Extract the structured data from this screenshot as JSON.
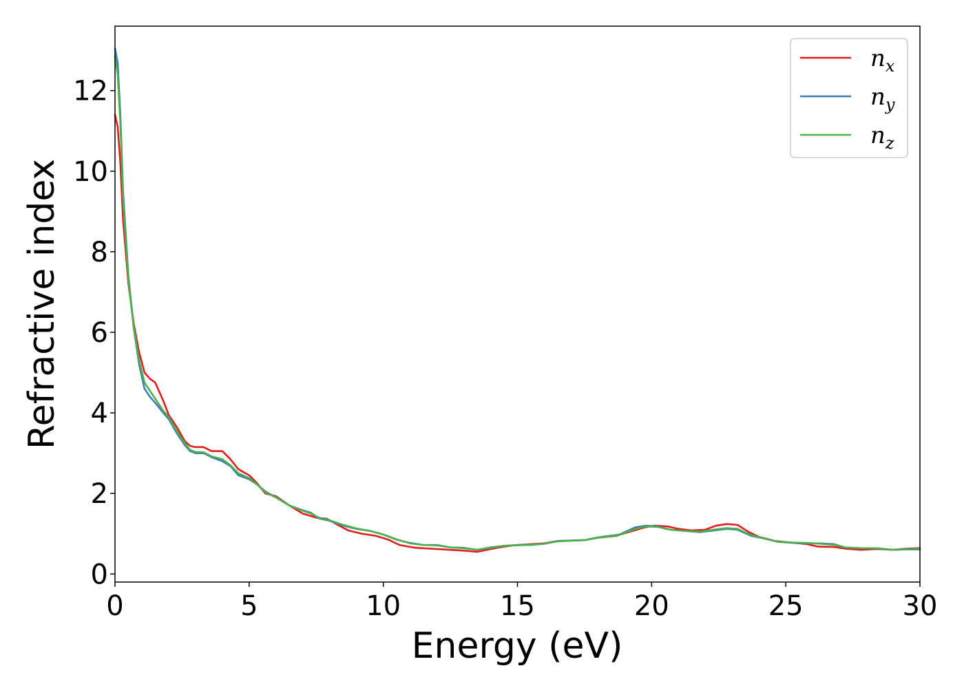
{
  "chart_data": {
    "type": "line",
    "title": "",
    "xlabel": "Energy (eV)",
    "ylabel": "Refractive index",
    "xlim": [
      0,
      30
    ],
    "ylim": [
      -0.2,
      13.6
    ],
    "xticks": [
      0,
      5,
      10,
      15,
      20,
      25,
      30
    ],
    "yticks": [
      0,
      2,
      4,
      6,
      8,
      10,
      12
    ],
    "grid": false,
    "legend": "top-right",
    "series": [
      {
        "name": "n",
        "sub": "x",
        "color": "#e41a1c",
        "points": [
          [
            0,
            11.4
          ],
          [
            0.1,
            11.1
          ],
          [
            0.2,
            10.2
          ],
          [
            0.3,
            8.8
          ],
          [
            0.5,
            7.2
          ],
          [
            0.7,
            6.2
          ],
          [
            0.9,
            5.5
          ],
          [
            1.1,
            5.0
          ],
          [
            1.3,
            4.85
          ],
          [
            1.5,
            4.75
          ],
          [
            1.8,
            4.3
          ],
          [
            2.0,
            3.95
          ],
          [
            2.3,
            3.65
          ],
          [
            2.6,
            3.3
          ],
          [
            2.8,
            3.18
          ],
          [
            3.0,
            3.15
          ],
          [
            3.3,
            3.15
          ],
          [
            3.6,
            3.05
          ],
          [
            4.0,
            3.05
          ],
          [
            4.3,
            2.85
          ],
          [
            4.6,
            2.6
          ],
          [
            5.0,
            2.45
          ],
          [
            5.3,
            2.25
          ],
          [
            5.6,
            2.0
          ],
          [
            6.0,
            1.93
          ],
          [
            6.5,
            1.7
          ],
          [
            7.0,
            1.5
          ],
          [
            7.5,
            1.4
          ],
          [
            7.9,
            1.37
          ],
          [
            8.3,
            1.22
          ],
          [
            8.7,
            1.08
          ],
          [
            9.2,
            1.0
          ],
          [
            9.7,
            0.95
          ],
          [
            10.2,
            0.85
          ],
          [
            10.6,
            0.72
          ],
          [
            11.2,
            0.65
          ],
          [
            12.0,
            0.62
          ],
          [
            13.0,
            0.58
          ],
          [
            13.5,
            0.55
          ],
          [
            14.0,
            0.62
          ],
          [
            14.5,
            0.68
          ],
          [
            15.0,
            0.72
          ],
          [
            15.5,
            0.74
          ],
          [
            16.0,
            0.76
          ],
          [
            16.5,
            0.82
          ],
          [
            17.5,
            0.84
          ],
          [
            18.0,
            0.9
          ],
          [
            18.7,
            0.95
          ],
          [
            19.2,
            1.05
          ],
          [
            19.7,
            1.15
          ],
          [
            20.1,
            1.2
          ],
          [
            20.6,
            1.18
          ],
          [
            21.0,
            1.12
          ],
          [
            21.5,
            1.08
          ],
          [
            22.0,
            1.1
          ],
          [
            22.4,
            1.2
          ],
          [
            22.8,
            1.24
          ],
          [
            23.2,
            1.22
          ],
          [
            23.6,
            1.05
          ],
          [
            24.0,
            0.92
          ],
          [
            24.6,
            0.82
          ],
          [
            25.2,
            0.78
          ],
          [
            25.8,
            0.74
          ],
          [
            26.2,
            0.68
          ],
          [
            26.8,
            0.67
          ],
          [
            27.2,
            0.63
          ],
          [
            27.8,
            0.6
          ],
          [
            28.4,
            0.62
          ],
          [
            29.0,
            0.6
          ],
          [
            29.5,
            0.63
          ],
          [
            30.0,
            0.64
          ]
        ]
      },
      {
        "name": "n",
        "sub": "y",
        "color": "#377eb8",
        "points": [
          [
            0,
            13.05
          ],
          [
            0.1,
            12.7
          ],
          [
            0.2,
            11.4
          ],
          [
            0.3,
            9.5
          ],
          [
            0.5,
            7.4
          ],
          [
            0.7,
            6.1
          ],
          [
            0.9,
            5.2
          ],
          [
            1.1,
            4.6
          ],
          [
            1.3,
            4.4
          ],
          [
            1.5,
            4.25
          ],
          [
            1.8,
            4.0
          ],
          [
            2.0,
            3.85
          ],
          [
            2.3,
            3.5
          ],
          [
            2.6,
            3.2
          ],
          [
            2.8,
            3.05
          ],
          [
            3.0,
            3.0
          ],
          [
            3.3,
            3.0
          ],
          [
            3.6,
            2.9
          ],
          [
            4.0,
            2.8
          ],
          [
            4.3,
            2.68
          ],
          [
            4.6,
            2.45
          ],
          [
            5.0,
            2.35
          ],
          [
            5.3,
            2.22
          ],
          [
            5.6,
            2.05
          ],
          [
            6.0,
            1.9
          ],
          [
            6.5,
            1.7
          ],
          [
            7.0,
            1.58
          ],
          [
            7.3,
            1.52
          ],
          [
            7.6,
            1.38
          ],
          [
            8.0,
            1.32
          ],
          [
            8.5,
            1.2
          ],
          [
            9.0,
            1.12
          ],
          [
            9.5,
            1.07
          ],
          [
            10.0,
            0.98
          ],
          [
            10.5,
            0.85
          ],
          [
            11.0,
            0.77
          ],
          [
            11.5,
            0.72
          ],
          [
            12.0,
            0.72
          ],
          [
            12.5,
            0.66
          ],
          [
            13.0,
            0.65
          ],
          [
            13.5,
            0.6
          ],
          [
            14.0,
            0.66
          ],
          [
            14.5,
            0.7
          ],
          [
            15.0,
            0.72
          ],
          [
            15.5,
            0.72
          ],
          [
            16.0,
            0.75
          ],
          [
            16.5,
            0.82
          ],
          [
            17.5,
            0.84
          ],
          [
            18.0,
            0.91
          ],
          [
            18.8,
            0.98
          ],
          [
            19.4,
            1.16
          ],
          [
            19.8,
            1.2
          ],
          [
            20.2,
            1.18
          ],
          [
            20.7,
            1.1
          ],
          [
            21.2,
            1.07
          ],
          [
            21.8,
            1.04
          ],
          [
            22.3,
            1.08
          ],
          [
            22.8,
            1.12
          ],
          [
            23.2,
            1.1
          ],
          [
            23.7,
            0.95
          ],
          [
            24.2,
            0.88
          ],
          [
            24.7,
            0.8
          ],
          [
            25.3,
            0.77
          ],
          [
            25.8,
            0.76
          ],
          [
            26.3,
            0.76
          ],
          [
            26.8,
            0.74
          ],
          [
            27.2,
            0.66
          ],
          [
            27.8,
            0.64
          ],
          [
            28.4,
            0.63
          ],
          [
            29.0,
            0.6
          ],
          [
            29.5,
            0.61
          ],
          [
            30.0,
            0.61
          ]
        ]
      },
      {
        "name": "n",
        "sub": "z",
        "color": "#4daf4a",
        "points": [
          [
            0,
            12.85
          ],
          [
            0.1,
            12.4
          ],
          [
            0.2,
            11.2
          ],
          [
            0.3,
            9.3
          ],
          [
            0.5,
            7.3
          ],
          [
            0.7,
            6.1
          ],
          [
            0.9,
            5.3
          ],
          [
            1.1,
            4.75
          ],
          [
            1.3,
            4.55
          ],
          [
            1.5,
            4.35
          ],
          [
            1.8,
            4.05
          ],
          [
            2.0,
            3.9
          ],
          [
            2.3,
            3.55
          ],
          [
            2.6,
            3.25
          ],
          [
            2.8,
            3.08
          ],
          [
            3.0,
            3.03
          ],
          [
            3.3,
            3.02
          ],
          [
            3.6,
            2.92
          ],
          [
            4.0,
            2.85
          ],
          [
            4.3,
            2.7
          ],
          [
            4.6,
            2.5
          ],
          [
            5.0,
            2.38
          ],
          [
            5.3,
            2.22
          ],
          [
            5.6,
            2.03
          ],
          [
            6.0,
            1.9
          ],
          [
            6.5,
            1.7
          ],
          [
            7.0,
            1.57
          ],
          [
            7.3,
            1.5
          ],
          [
            7.6,
            1.4
          ],
          [
            8.0,
            1.33
          ],
          [
            8.5,
            1.22
          ],
          [
            9.0,
            1.13
          ],
          [
            9.5,
            1.07
          ],
          [
            10.0,
            0.98
          ],
          [
            10.5,
            0.86
          ],
          [
            11.0,
            0.76
          ],
          [
            11.5,
            0.72
          ],
          [
            12.0,
            0.71
          ],
          [
            12.5,
            0.66
          ],
          [
            13.0,
            0.64
          ],
          [
            13.5,
            0.6
          ],
          [
            14.0,
            0.65
          ],
          [
            14.5,
            0.7
          ],
          [
            15.0,
            0.71
          ],
          [
            15.5,
            0.73
          ],
          [
            16.0,
            0.75
          ],
          [
            16.5,
            0.81
          ],
          [
            17.5,
            0.84
          ],
          [
            18.0,
            0.9
          ],
          [
            18.8,
            0.97
          ],
          [
            19.4,
            1.12
          ],
          [
            19.8,
            1.18
          ],
          [
            20.2,
            1.17
          ],
          [
            20.7,
            1.1
          ],
          [
            21.2,
            1.07
          ],
          [
            21.8,
            1.05
          ],
          [
            22.3,
            1.1
          ],
          [
            22.8,
            1.14
          ],
          [
            23.2,
            1.12
          ],
          [
            23.7,
            0.97
          ],
          [
            24.2,
            0.88
          ],
          [
            24.7,
            0.8
          ],
          [
            25.3,
            0.78
          ],
          [
            25.8,
            0.77
          ],
          [
            26.3,
            0.75
          ],
          [
            26.8,
            0.72
          ],
          [
            27.2,
            0.66
          ],
          [
            27.8,
            0.64
          ],
          [
            28.4,
            0.64
          ],
          [
            29.0,
            0.6
          ],
          [
            29.5,
            0.62
          ],
          [
            30.0,
            0.62
          ]
        ]
      }
    ]
  }
}
